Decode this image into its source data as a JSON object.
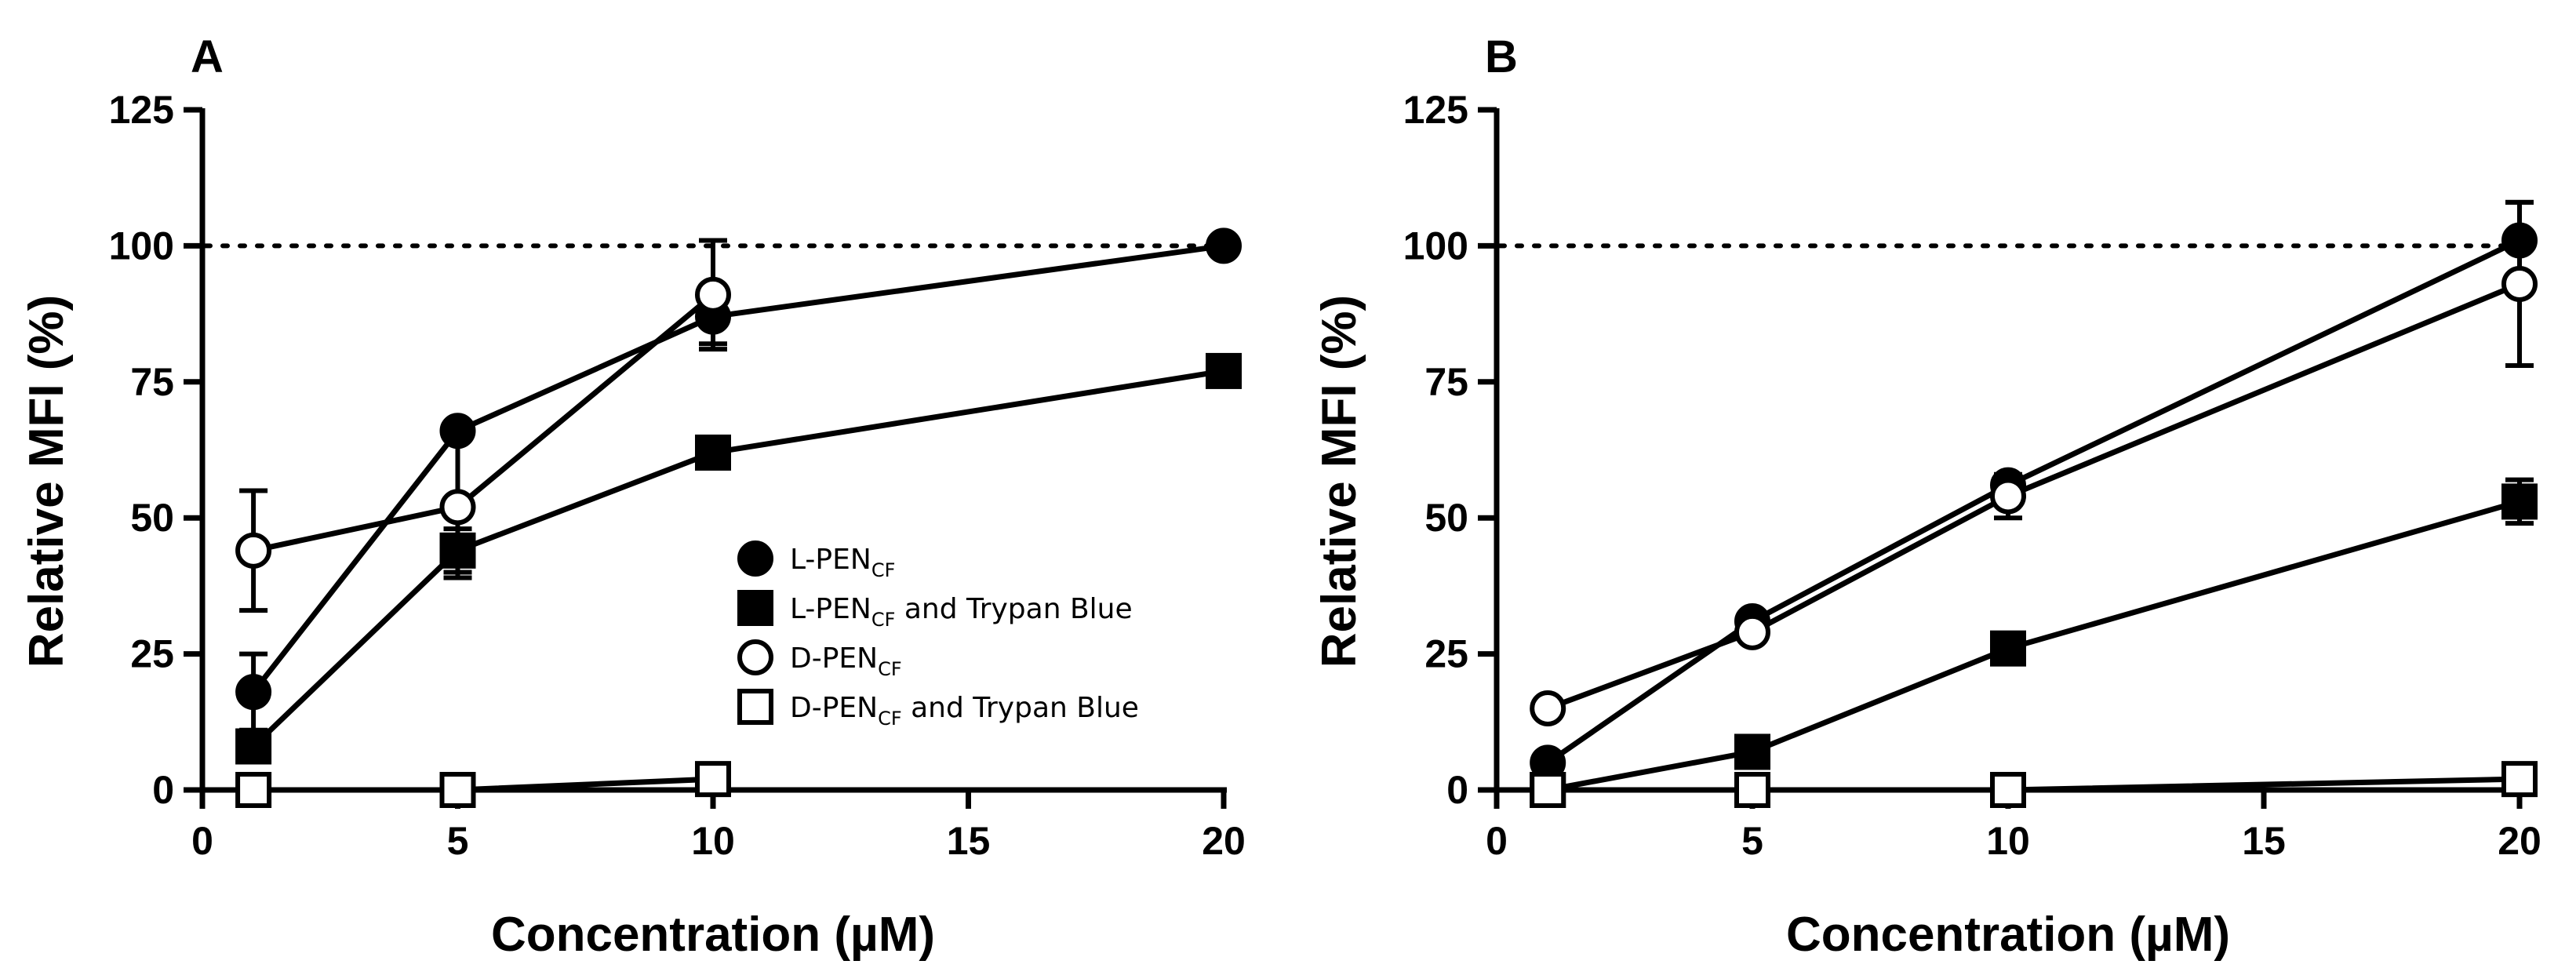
{
  "figure": {
    "legend": {
      "entries": [
        {
          "key": "l_pen",
          "name": "L-PEN",
          "sub": "CF",
          "suffix": "",
          "marker": "circle",
          "filled": true
        },
        {
          "key": "l_pen_tb",
          "name": "L-PEN",
          "sub": "CF",
          "suffix": " and Trypan Blue",
          "marker": "square",
          "filled": true
        },
        {
          "key": "d_pen",
          "name": "D-PEN",
          "sub": "CF",
          "suffix": "",
          "marker": "circle",
          "filled": false
        },
        {
          "key": "d_pen_tb",
          "name": "D-PEN",
          "sub": "CF",
          "suffix": " and Trypan Blue",
          "marker": "square",
          "filled": false
        }
      ]
    }
  },
  "chart_data": [
    {
      "panel": "A",
      "type": "line",
      "xlabel": "Concentration (µM)",
      "ylabel": "Relative  MFI (%)",
      "xlim": [
        0,
        20
      ],
      "ylim": [
        0,
        125
      ],
      "xticks": [
        0,
        5,
        10,
        15,
        20
      ],
      "yticks": [
        0,
        25,
        50,
        75,
        100,
        125
      ],
      "reference_line": 100,
      "legend_position": "center-right",
      "series": [
        {
          "key": "l_pen",
          "name": "L-PEN CF",
          "x": [
            1,
            5,
            10,
            20
          ],
          "values": [
            18,
            66,
            87,
            100
          ],
          "error": [
            7,
            0,
            5,
            0
          ]
        },
        {
          "key": "l_pen_tb",
          "name": "L-PEN CF and Trypan Blue",
          "x": [
            1,
            5,
            10,
            20
          ],
          "values": [
            8,
            44,
            62,
            77
          ],
          "error": [
            0,
            4,
            0,
            0
          ]
        },
        {
          "key": "d_pen",
          "name": "D-PEN CF",
          "x": [
            1,
            5,
            10
          ],
          "values": [
            44,
            52,
            91
          ],
          "error": [
            11,
            13,
            10
          ]
        },
        {
          "key": "d_pen_tb",
          "name": "D-PEN CF and Trypan Blue",
          "x": [
            1,
            5,
            10
          ],
          "values": [
            0,
            0,
            2
          ],
          "error": [
            0,
            0,
            0
          ]
        }
      ]
    },
    {
      "panel": "B",
      "type": "line",
      "xlabel": "Concentration (µM)",
      "ylabel": "Relative  MFI (%)",
      "xlim": [
        0,
        20
      ],
      "ylim": [
        0,
        125
      ],
      "xticks": [
        0,
        5,
        10,
        15,
        20
      ],
      "yticks": [
        0,
        25,
        50,
        75,
        100,
        125
      ],
      "reference_line": 100,
      "series": [
        {
          "key": "l_pen",
          "name": "L-PEN CF",
          "x": [
            1,
            5,
            10,
            20
          ],
          "values": [
            5,
            31,
            56,
            101
          ],
          "error": [
            0,
            0,
            0,
            7
          ]
        },
        {
          "key": "l_pen_tb",
          "name": "L-PEN CF and Trypan Blue",
          "x": [
            1,
            5,
            10,
            20
          ],
          "values": [
            0,
            7,
            26,
            53
          ],
          "error": [
            0,
            0,
            0,
            4
          ]
        },
        {
          "key": "d_pen",
          "name": "D-PEN CF",
          "x": [
            1,
            5,
            10,
            20
          ],
          "values": [
            15,
            29,
            54,
            93
          ],
          "error": [
            0,
            0,
            4,
            15
          ]
        },
        {
          "key": "d_pen_tb",
          "name": "D-PEN CF and Trypan Blue",
          "x": [
            1,
            5,
            10,
            20
          ],
          "values": [
            0,
            0,
            0,
            2
          ],
          "error": [
            0,
            0,
            0,
            0
          ]
        }
      ]
    }
  ]
}
